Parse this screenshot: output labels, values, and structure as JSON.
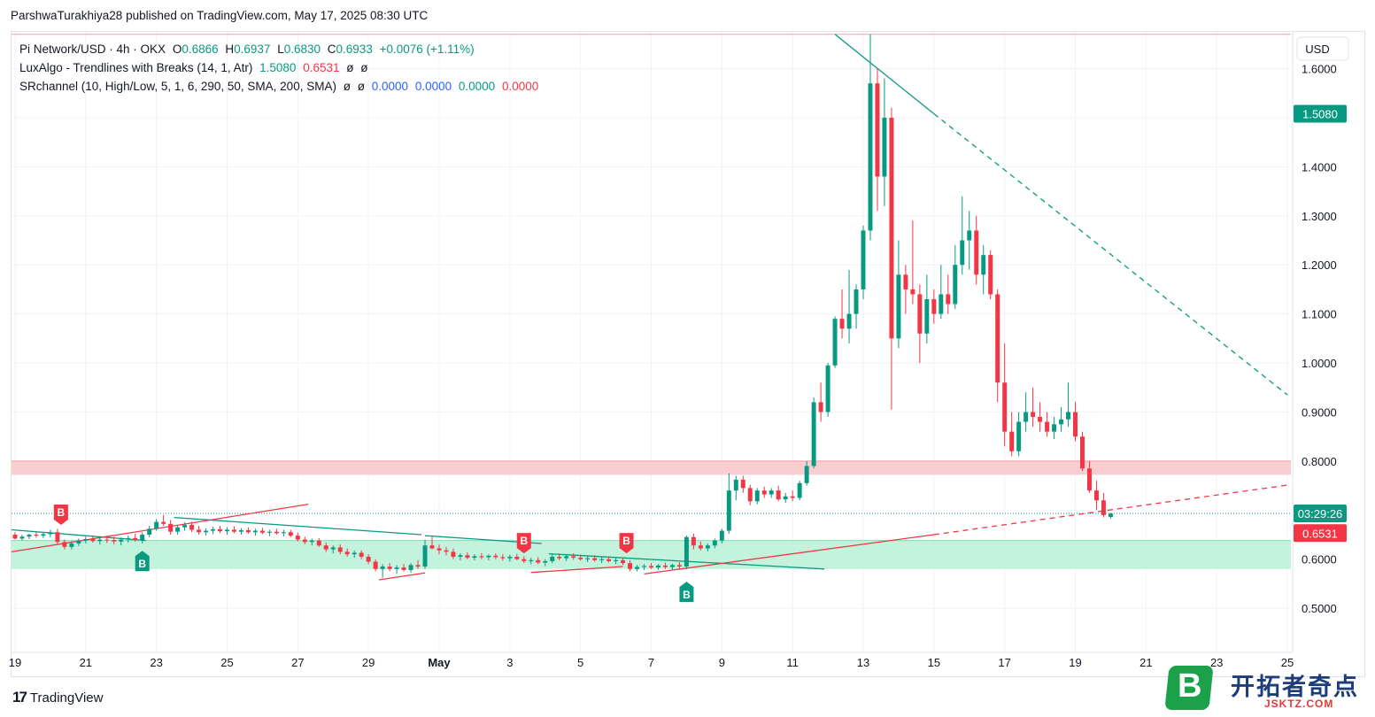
{
  "publisher": "ParshwaTurakhiya28 published on TradingView.com, May 17, 2025 08:30 UTC",
  "legend": {
    "symbol": "Pi Network/USD · 4h · OKX",
    "o_label": "O",
    "o": "0.6866",
    "h_label": "H",
    "h": "0.6937",
    "l_label": "L",
    "l": "0.6830",
    "c_label": "C",
    "c": "0.6933",
    "change": "+0.0076 (+1.11%)",
    "ind1_name": "LuxAlgo - Trendlines with Breaks (14, 1, Atr)",
    "ind1_v1": "1.5080",
    "ind1_v2": "0.6531",
    "ind1_e1": "ø",
    "ind1_e2": "ø",
    "ind2_name": "SRchannel (10, High/Low, 5, 1, 6, 290, 50, SMA, 200, SMA)",
    "ind2_e1": "ø",
    "ind2_e2": "ø",
    "ind2_v1": "0.0000",
    "ind2_v2": "0.0000",
    "ind2_v3": "0.0000",
    "ind2_v4": "0.0000"
  },
  "footer": {
    "logo": "17",
    "brand": "TradingView"
  },
  "watermark": {
    "letter": "B",
    "text": "开拓者奇点",
    "sub": "JSKTZ.COM"
  },
  "colors": {
    "up": "#089981",
    "down": "#f23645",
    "resistance_zone": "#f8c9cc",
    "support_zone": "#bdf2d8",
    "grid": "#f0f3fa"
  },
  "chart_data": {
    "type": "candlestick",
    "y_axis": {
      "currency": "USD",
      "ylim": [
        0.41,
        1.675
      ],
      "ticks": [
        0.5,
        0.6,
        0.7,
        0.8,
        0.9,
        1.0,
        1.1,
        1.2,
        1.3,
        1.4,
        1.5,
        1.6
      ]
    },
    "x_axis": {
      "labels": [
        "19",
        "21",
        "23",
        "25",
        "27",
        "29",
        "May",
        "3",
        "5",
        "7",
        "9",
        "11",
        "13",
        "15",
        "17",
        "19",
        "21",
        "23",
        "25"
      ],
      "label_dates": [
        19,
        21,
        23,
        25,
        27,
        29,
        31,
        33,
        35,
        37,
        39,
        41,
        43,
        45,
        47,
        49,
        51,
        53,
        55
      ],
      "xlim": [
        18.9,
        55.1
      ]
    },
    "price_labels": [
      {
        "text": "1.5080",
        "value": 1.508,
        "color": "#089981"
      },
      {
        "text": "03:29:26",
        "value": 0.6933,
        "color": "#089981"
      },
      {
        "text": "0.6531",
        "value": 0.6531,
        "color": "#f23645"
      }
    ],
    "zones": [
      {
        "name": "resistance",
        "from": 0.772,
        "to": 0.8,
        "color": "#f8c9cc"
      },
      {
        "name": "support",
        "from": 0.58,
        "to": 0.638,
        "color": "#bdf2d8"
      }
    ],
    "top_line": 1.67,
    "current_price_line": 0.6933,
    "trendlines": [
      {
        "color": "#089981",
        "x1": 18.9,
        "y1": 0.66,
        "x2": 22.7,
        "y2": 0.638,
        "dashed": false
      },
      {
        "color": "#f23645",
        "x1": 18.9,
        "y1": 0.615,
        "x2": 27.3,
        "y2": 0.712,
        "dashed": false
      },
      {
        "color": "#089981",
        "x1": 23.5,
        "y1": 0.685,
        "x2": 30.5,
        "y2": 0.65,
        "dashed": false
      },
      {
        "color": "#f23645",
        "x1": 29.3,
        "y1": 0.558,
        "x2": 30.6,
        "y2": 0.572,
        "dashed": false
      },
      {
        "color": "#089981",
        "x1": 30.6,
        "y1": 0.648,
        "x2": 33.9,
        "y2": 0.632,
        "dashed": false
      },
      {
        "color": "#f23645",
        "x1": 33.6,
        "y1": 0.573,
        "x2": 36.2,
        "y2": 0.585,
        "dashed": false
      },
      {
        "color": "#089981",
        "x1": 34.1,
        "y1": 0.611,
        "x2": 41.9,
        "y2": 0.58,
        "dashed": false
      },
      {
        "color": "#f23645",
        "x1": 36.8,
        "y1": 0.57,
        "x2": 45.0,
        "y2": 0.65,
        "dashed": false
      },
      {
        "color": "#f23645",
        "x1": 45.0,
        "y1": 0.65,
        "x2": 55.1,
        "y2": 0.752,
        "dashed": true
      },
      {
        "color": "#089981",
        "x1": 42.2,
        "y1": 1.67,
        "x2": 45.0,
        "y2": 1.508,
        "dashed": false
      },
      {
        "color": "#089981",
        "x1": 45.0,
        "y1": 1.508,
        "x2": 55.0,
        "y2": 0.935,
        "dashed": true
      }
    ],
    "signals": [
      {
        "label": "B",
        "x": 20.3,
        "price": 0.668,
        "side": "above",
        "color": "#f23645"
      },
      {
        "label": "B",
        "x": 22.6,
        "price": 0.628,
        "side": "below",
        "color": "#089981"
      },
      {
        "label": "B",
        "x": 33.4,
        "price": 0.61,
        "side": "above",
        "color": "#f23645"
      },
      {
        "label": "B",
        "x": 36.3,
        "price": 0.61,
        "side": "above",
        "color": "#f23645"
      },
      {
        "label": "B",
        "x": 38.0,
        "price": 0.565,
        "side": "below",
        "color": "#089981"
      }
    ],
    "candles": [
      [
        19.0,
        0.65,
        0.655,
        0.64,
        0.642
      ],
      [
        19.2,
        0.642,
        0.65,
        0.638,
        0.646
      ],
      [
        19.4,
        0.646,
        0.652,
        0.641,
        0.65
      ],
      [
        19.6,
        0.65,
        0.656,
        0.644,
        0.648
      ],
      [
        19.8,
        0.648,
        0.654,
        0.643,
        0.651
      ],
      [
        20.0,
        0.651,
        0.66,
        0.645,
        0.655
      ],
      [
        20.2,
        0.655,
        0.662,
        0.63,
        0.635
      ],
      [
        20.4,
        0.635,
        0.64,
        0.62,
        0.625
      ],
      [
        20.6,
        0.625,
        0.637,
        0.62,
        0.632
      ],
      [
        20.8,
        0.632,
        0.642,
        0.627,
        0.638
      ],
      [
        21.0,
        0.638,
        0.646,
        0.632,
        0.641
      ],
      [
        21.2,
        0.641,
        0.648,
        0.634,
        0.637
      ],
      [
        21.4,
        0.637,
        0.645,
        0.63,
        0.64
      ],
      [
        21.6,
        0.64,
        0.647,
        0.633,
        0.639
      ],
      [
        21.8,
        0.639,
        0.646,
        0.63,
        0.636
      ],
      [
        22.0,
        0.636,
        0.644,
        0.628,
        0.64
      ],
      [
        22.2,
        0.64,
        0.648,
        0.634,
        0.643
      ],
      [
        22.4,
        0.643,
        0.652,
        0.636,
        0.639
      ],
      [
        22.6,
        0.639,
        0.655,
        0.632,
        0.65
      ],
      [
        22.8,
        0.65,
        0.668,
        0.645,
        0.662
      ],
      [
        23.0,
        0.662,
        0.682,
        0.658,
        0.676
      ],
      [
        23.2,
        0.676,
        0.69,
        0.668,
        0.672
      ],
      [
        23.4,
        0.672,
        0.68,
        0.65,
        0.656
      ],
      [
        23.6,
        0.656,
        0.67,
        0.65,
        0.665
      ],
      [
        23.8,
        0.665,
        0.675,
        0.658,
        0.67
      ],
      [
        24.0,
        0.67,
        0.676,
        0.655,
        0.66
      ],
      [
        24.2,
        0.66,
        0.668,
        0.65,
        0.655
      ],
      [
        24.4,
        0.655,
        0.663,
        0.648,
        0.658
      ],
      [
        24.6,
        0.658,
        0.666,
        0.651,
        0.661
      ],
      [
        24.8,
        0.661,
        0.668,
        0.653,
        0.657
      ],
      [
        25.0,
        0.657,
        0.665,
        0.65,
        0.66
      ],
      [
        25.2,
        0.66,
        0.667,
        0.653,
        0.656
      ],
      [
        25.4,
        0.656,
        0.663,
        0.65,
        0.659
      ],
      [
        25.6,
        0.659,
        0.665,
        0.652,
        0.655
      ],
      [
        25.8,
        0.655,
        0.662,
        0.648,
        0.658
      ],
      [
        26.0,
        0.658,
        0.664,
        0.651,
        0.654
      ],
      [
        26.2,
        0.654,
        0.66,
        0.647,
        0.656
      ],
      [
        26.4,
        0.656,
        0.662,
        0.65,
        0.653
      ],
      [
        26.6,
        0.653,
        0.66,
        0.646,
        0.655
      ],
      [
        26.8,
        0.655,
        0.66,
        0.645,
        0.648
      ],
      [
        27.0,
        0.648,
        0.654,
        0.636,
        0.64
      ],
      [
        27.2,
        0.64,
        0.646,
        0.63,
        0.635
      ],
      [
        27.4,
        0.635,
        0.642,
        0.628,
        0.638
      ],
      [
        27.6,
        0.638,
        0.643,
        0.625,
        0.628
      ],
      [
        27.8,
        0.628,
        0.634,
        0.615,
        0.62
      ],
      [
        28.0,
        0.62,
        0.628,
        0.612,
        0.624
      ],
      [
        28.2,
        0.624,
        0.63,
        0.61,
        0.615
      ],
      [
        28.4,
        0.615,
        0.622,
        0.605,
        0.61
      ],
      [
        28.6,
        0.61,
        0.618,
        0.603,
        0.613
      ],
      [
        28.8,
        0.613,
        0.618,
        0.6,
        0.605
      ],
      [
        29.0,
        0.605,
        0.61,
        0.59,
        0.595
      ],
      [
        29.2,
        0.595,
        0.6,
        0.575,
        0.58
      ],
      [
        29.4,
        0.58,
        0.59,
        0.562,
        0.585
      ],
      [
        29.6,
        0.585,
        0.592,
        0.575,
        0.58
      ],
      [
        29.8,
        0.58,
        0.588,
        0.57,
        0.583
      ],
      [
        30.0,
        0.583,
        0.59,
        0.575,
        0.578
      ],
      [
        30.2,
        0.578,
        0.592,
        0.572,
        0.588
      ],
      [
        30.4,
        0.588,
        0.598,
        0.58,
        0.585
      ],
      [
        30.6,
        0.585,
        0.64,
        0.58,
        0.628
      ],
      [
        30.8,
        0.628,
        0.648,
        0.62,
        0.622
      ],
      [
        31.0,
        0.622,
        0.63,
        0.61,
        0.618
      ],
      [
        31.2,
        0.618,
        0.625,
        0.608,
        0.615
      ],
      [
        31.4,
        0.615,
        0.622,
        0.6,
        0.605
      ],
      [
        31.6,
        0.605,
        0.612,
        0.598,
        0.608
      ],
      [
        31.8,
        0.608,
        0.614,
        0.6,
        0.603
      ],
      [
        32.0,
        0.603,
        0.61,
        0.598,
        0.606
      ],
      [
        32.2,
        0.606,
        0.612,
        0.6,
        0.604
      ],
      [
        32.4,
        0.604,
        0.61,
        0.598,
        0.607
      ],
      [
        32.6,
        0.607,
        0.612,
        0.6,
        0.604
      ],
      [
        32.8,
        0.604,
        0.61,
        0.597,
        0.602
      ],
      [
        33.0,
        0.602,
        0.609,
        0.595,
        0.605
      ],
      [
        33.2,
        0.605,
        0.611,
        0.598,
        0.6
      ],
      [
        33.4,
        0.6,
        0.606,
        0.592,
        0.596
      ],
      [
        33.6,
        0.596,
        0.603,
        0.59,
        0.598
      ],
      [
        33.8,
        0.598,
        0.604,
        0.59,
        0.593
      ],
      [
        34.0,
        0.593,
        0.6,
        0.586,
        0.596
      ],
      [
        34.2,
        0.596,
        0.61,
        0.592,
        0.605
      ],
      [
        34.4,
        0.605,
        0.612,
        0.598,
        0.602
      ],
      [
        34.6,
        0.602,
        0.61,
        0.596,
        0.606
      ],
      [
        34.8,
        0.606,
        0.612,
        0.599,
        0.603
      ],
      [
        35.0,
        0.603,
        0.609,
        0.597,
        0.6
      ],
      [
        35.2,
        0.6,
        0.607,
        0.594,
        0.602
      ],
      [
        35.4,
        0.602,
        0.608,
        0.595,
        0.598
      ],
      [
        35.6,
        0.598,
        0.605,
        0.592,
        0.6
      ],
      [
        35.8,
        0.6,
        0.606,
        0.593,
        0.596
      ],
      [
        36.0,
        0.596,
        0.603,
        0.59,
        0.598
      ],
      [
        36.2,
        0.598,
        0.604,
        0.588,
        0.592
      ],
      [
        36.4,
        0.592,
        0.598,
        0.575,
        0.58
      ],
      [
        36.6,
        0.58,
        0.588,
        0.575,
        0.584
      ],
      [
        36.8,
        0.584,
        0.59,
        0.578,
        0.586
      ],
      [
        37.0,
        0.586,
        0.592,
        0.58,
        0.583
      ],
      [
        37.2,
        0.583,
        0.59,
        0.578,
        0.587
      ],
      [
        37.4,
        0.587,
        0.593,
        0.58,
        0.584
      ],
      [
        37.6,
        0.584,
        0.591,
        0.578,
        0.588
      ],
      [
        37.8,
        0.588,
        0.594,
        0.58,
        0.585
      ],
      [
        38.0,
        0.585,
        0.648,
        0.58,
        0.645
      ],
      [
        38.2,
        0.645,
        0.652,
        0.62,
        0.628
      ],
      [
        38.4,
        0.628,
        0.636,
        0.618,
        0.622
      ],
      [
        38.6,
        0.622,
        0.632,
        0.616,
        0.628
      ],
      [
        38.8,
        0.628,
        0.642,
        0.622,
        0.638
      ],
      [
        39.0,
        0.638,
        0.662,
        0.632,
        0.658
      ],
      [
        39.2,
        0.658,
        0.775,
        0.652,
        0.74
      ],
      [
        39.4,
        0.74,
        0.77,
        0.72,
        0.762
      ],
      [
        39.6,
        0.762,
        0.77,
        0.735,
        0.745
      ],
      [
        39.8,
        0.745,
        0.752,
        0.71,
        0.718
      ],
      [
        40.0,
        0.718,
        0.745,
        0.712,
        0.74
      ],
      [
        40.2,
        0.74,
        0.748,
        0.725,
        0.732
      ],
      [
        40.4,
        0.732,
        0.745,
        0.725,
        0.74
      ],
      [
        40.6,
        0.74,
        0.75,
        0.718,
        0.722
      ],
      [
        40.8,
        0.722,
        0.735,
        0.715,
        0.728
      ],
      [
        41.0,
        0.728,
        0.74,
        0.718,
        0.725
      ],
      [
        41.2,
        0.725,
        0.76,
        0.72,
        0.755
      ],
      [
        41.4,
        0.755,
        0.8,
        0.75,
        0.79
      ],
      [
        41.6,
        0.79,
        0.93,
        0.785,
        0.92
      ],
      [
        41.8,
        0.92,
        0.96,
        0.88,
        0.9
      ],
      [
        42.0,
        0.9,
        1.0,
        0.89,
        0.995
      ],
      [
        42.2,
        0.995,
        1.095,
        0.99,
        1.09
      ],
      [
        42.4,
        1.09,
        1.15,
        1.05,
        1.07
      ],
      [
        42.6,
        1.07,
        1.19,
        1.04,
        1.1
      ],
      [
        42.8,
        1.1,
        1.16,
        1.07,
        1.15
      ],
      [
        43.0,
        1.15,
        1.28,
        1.13,
        1.27
      ],
      [
        43.2,
        1.27,
        1.67,
        1.25,
        1.57
      ],
      [
        43.4,
        1.57,
        1.6,
        1.31,
        1.38
      ],
      [
        43.6,
        1.38,
        1.58,
        1.32,
        1.5
      ],
      [
        43.8,
        1.5,
        1.52,
        0.905,
        1.05
      ],
      [
        44.0,
        1.05,
        1.25,
        1.03,
        1.18
      ],
      [
        44.2,
        1.18,
        1.2,
        1.1,
        1.15
      ],
      [
        44.4,
        1.15,
        1.29,
        1.12,
        1.14
      ],
      [
        44.6,
        1.14,
        1.16,
        1.0,
        1.06
      ],
      [
        44.8,
        1.06,
        1.18,
        1.04,
        1.13
      ],
      [
        45.0,
        1.13,
        1.15,
        1.08,
        1.1
      ],
      [
        45.2,
        1.1,
        1.2,
        1.09,
        1.14
      ],
      [
        45.4,
        1.14,
        1.18,
        1.1,
        1.12
      ],
      [
        45.6,
        1.12,
        1.24,
        1.11,
        1.2
      ],
      [
        45.8,
        1.2,
        1.34,
        1.18,
        1.25
      ],
      [
        46.0,
        1.25,
        1.31,
        1.19,
        1.27
      ],
      [
        46.2,
        1.27,
        1.3,
        1.16,
        1.18
      ],
      [
        46.4,
        1.18,
        1.24,
        1.14,
        1.22
      ],
      [
        46.6,
        1.22,
        1.23,
        1.13,
        1.14
      ],
      [
        46.8,
        1.14,
        1.15,
        0.92,
        0.96
      ],
      [
        47.0,
        0.96,
        1.04,
        0.83,
        0.86
      ],
      [
        47.2,
        0.86,
        0.9,
        0.81,
        0.82
      ],
      [
        47.4,
        0.82,
        0.9,
        0.81,
        0.88
      ],
      [
        47.6,
        0.88,
        0.94,
        0.86,
        0.9
      ],
      [
        47.8,
        0.9,
        0.95,
        0.87,
        0.89
      ],
      [
        48.0,
        0.89,
        0.92,
        0.86,
        0.88
      ],
      [
        48.2,
        0.88,
        0.9,
        0.85,
        0.86
      ],
      [
        48.4,
        0.86,
        0.89,
        0.845,
        0.875
      ],
      [
        48.6,
        0.875,
        0.91,
        0.86,
        0.885
      ],
      [
        48.8,
        0.885,
        0.96,
        0.87,
        0.9
      ],
      [
        49.0,
        0.9,
        0.92,
        0.84,
        0.85
      ],
      [
        49.2,
        0.85,
        0.86,
        0.78,
        0.785
      ],
      [
        49.4,
        0.785,
        0.8,
        0.735,
        0.74
      ],
      [
        49.6,
        0.74,
        0.76,
        0.7,
        0.72
      ],
      [
        49.8,
        0.72,
        0.735,
        0.685,
        0.69
      ],
      [
        50.0,
        0.686,
        0.694,
        0.683,
        0.693
      ]
    ]
  }
}
